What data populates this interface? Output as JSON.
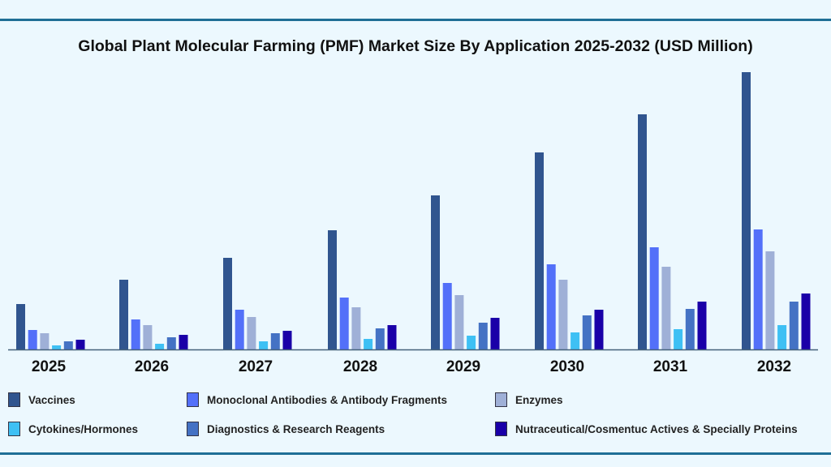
{
  "chart_data": {
    "type": "bar",
    "title": "Global Plant Molecular Farming (PMF) Market Size By Application 2025-2032 (USD Million)",
    "categories": [
      "2025",
      "2026",
      "2027",
      "2028",
      "2029",
      "2030",
      "2031",
      "2032"
    ],
    "ylim": [
      0,
      342
    ],
    "grid": false,
    "legend_placement": "bottom",
    "series": [
      {
        "name": "Vaccines",
        "color": "#30558f",
        "values": [
          56,
          86,
          113,
          147,
          190,
          243,
          290,
          342
        ]
      },
      {
        "name": "Monoclonal Antibodies & Antibody Fragments",
        "color": "#5370f9",
        "values": [
          24,
          37,
          49,
          64,
          82,
          105,
          126,
          148
        ]
      },
      {
        "name": "Enzymes",
        "color": "#9fb0d7",
        "values": [
          20,
          30,
          40,
          52,
          67,
          86,
          102,
          121
        ]
      },
      {
        "name": "Cytokines/Hormones",
        "color": "#3ec0f4",
        "values": [
          5,
          7,
          10,
          13,
          17,
          21,
          25,
          30
        ]
      },
      {
        "name": "Diagnostics & Research Reagents",
        "color": "#4472c4",
        "values": [
          10,
          15,
          20,
          26,
          33,
          42,
          50,
          59
        ]
      },
      {
        "name": "Nutraceutical/Cosmentuc Actives & Specially Proteins",
        "color": "#1a00a8",
        "values": [
          12,
          18,
          23,
          30,
          39,
          49,
          59,
          69
        ]
      }
    ]
  }
}
